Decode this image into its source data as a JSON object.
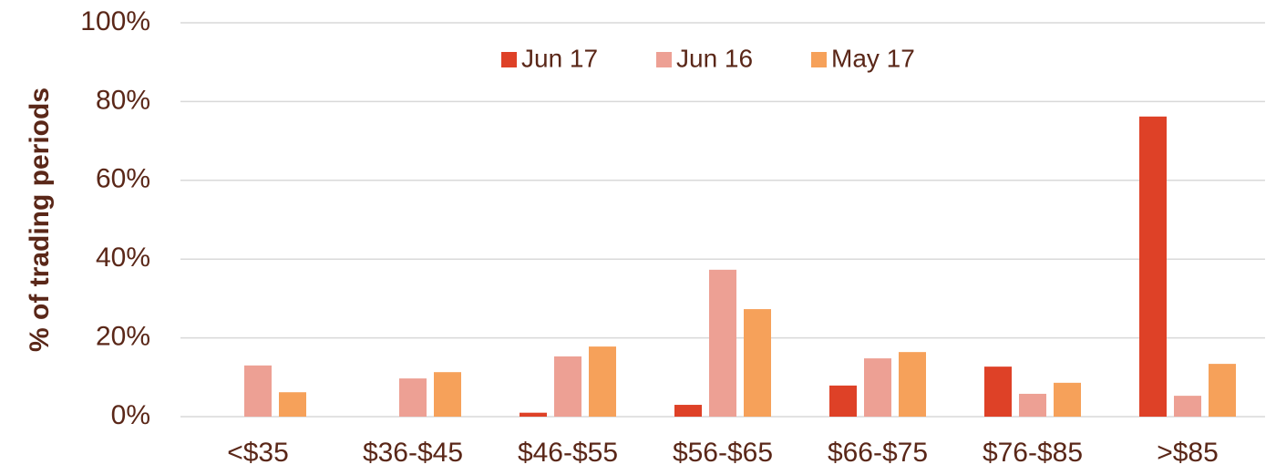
{
  "chart_data": {
    "type": "bar",
    "y_label": "% of trading periods",
    "categories": [
      "<$35",
      "$36-$45",
      "$46-$55",
      "$56-$65",
      "$66-$75",
      "$76-$85",
      ">$85"
    ],
    "series": [
      {
        "name": "Jun 17",
        "color": "#de4127",
        "values": [
          0,
          0,
          1,
          3,
          7.9,
          12.7,
          76.2
        ]
      },
      {
        "name": "Jun 16",
        "color": "#eda094",
        "values": [
          13,
          9.7,
          15.3,
          37.3,
          14.8,
          5.8,
          5.3
        ]
      },
      {
        "name": "May 17",
        "color": "#f6a15a",
        "values": [
          6.2,
          11.3,
          17.8,
          27.3,
          16.4,
          8.6,
          13.4
        ]
      }
    ],
    "ylim": [
      0,
      100
    ],
    "yticks": [
      {
        "value": 0,
        "label": "0%"
      },
      {
        "value": 20,
        "label": "20%"
      },
      {
        "value": 40,
        "label": "40%"
      },
      {
        "value": 60,
        "label": "60%"
      },
      {
        "value": 80,
        "label": "80%"
      },
      {
        "value": 100,
        "label": "100%"
      }
    ],
    "grid": true
  }
}
